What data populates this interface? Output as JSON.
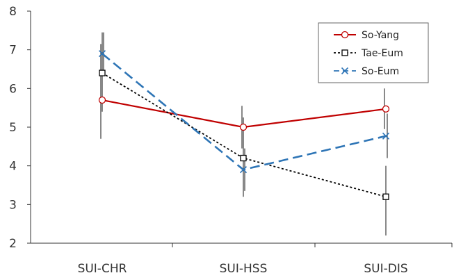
{
  "chart_data": {
    "type": "line",
    "title": "",
    "xlabel": "",
    "ylabel": "",
    "categories": [
      "SUI-CHR",
      "SUI-HSS",
      "SUI-DIS"
    ],
    "ylim": [
      2,
      8
    ],
    "yticks": [
      "2",
      "3",
      "4",
      "5",
      "6",
      "7",
      "8"
    ],
    "grid": false,
    "legend_position": "top-right",
    "series": [
      {
        "name": "So-Yang",
        "values": [
          5.7,
          5.0,
          5.47
        ],
        "err_low": [
          4.7,
          4.45,
          4.95
        ],
        "err_high": [
          7.15,
          5.55,
          6.0
        ],
        "color": "#c00000",
        "line_style": "solid",
        "marker": "circle"
      },
      {
        "name": "Tae-Eum",
        "values": [
          6.4,
          4.2,
          3.2
        ],
        "err_low": [
          5.4,
          3.2,
          2.2
        ],
        "err_high": [
          7.45,
          5.25,
          4.0
        ],
        "color": "#000000",
        "line_style": "dotted",
        "marker": "square"
      },
      {
        "name": "So-Eum",
        "values": [
          6.9,
          3.9,
          4.77
        ],
        "err_low": [
          6.35,
          3.35,
          4.2
        ],
        "err_high": [
          7.45,
          4.45,
          5.35
        ],
        "color": "#2e75b6",
        "line_style": "dashed",
        "marker": "x"
      }
    ]
  }
}
